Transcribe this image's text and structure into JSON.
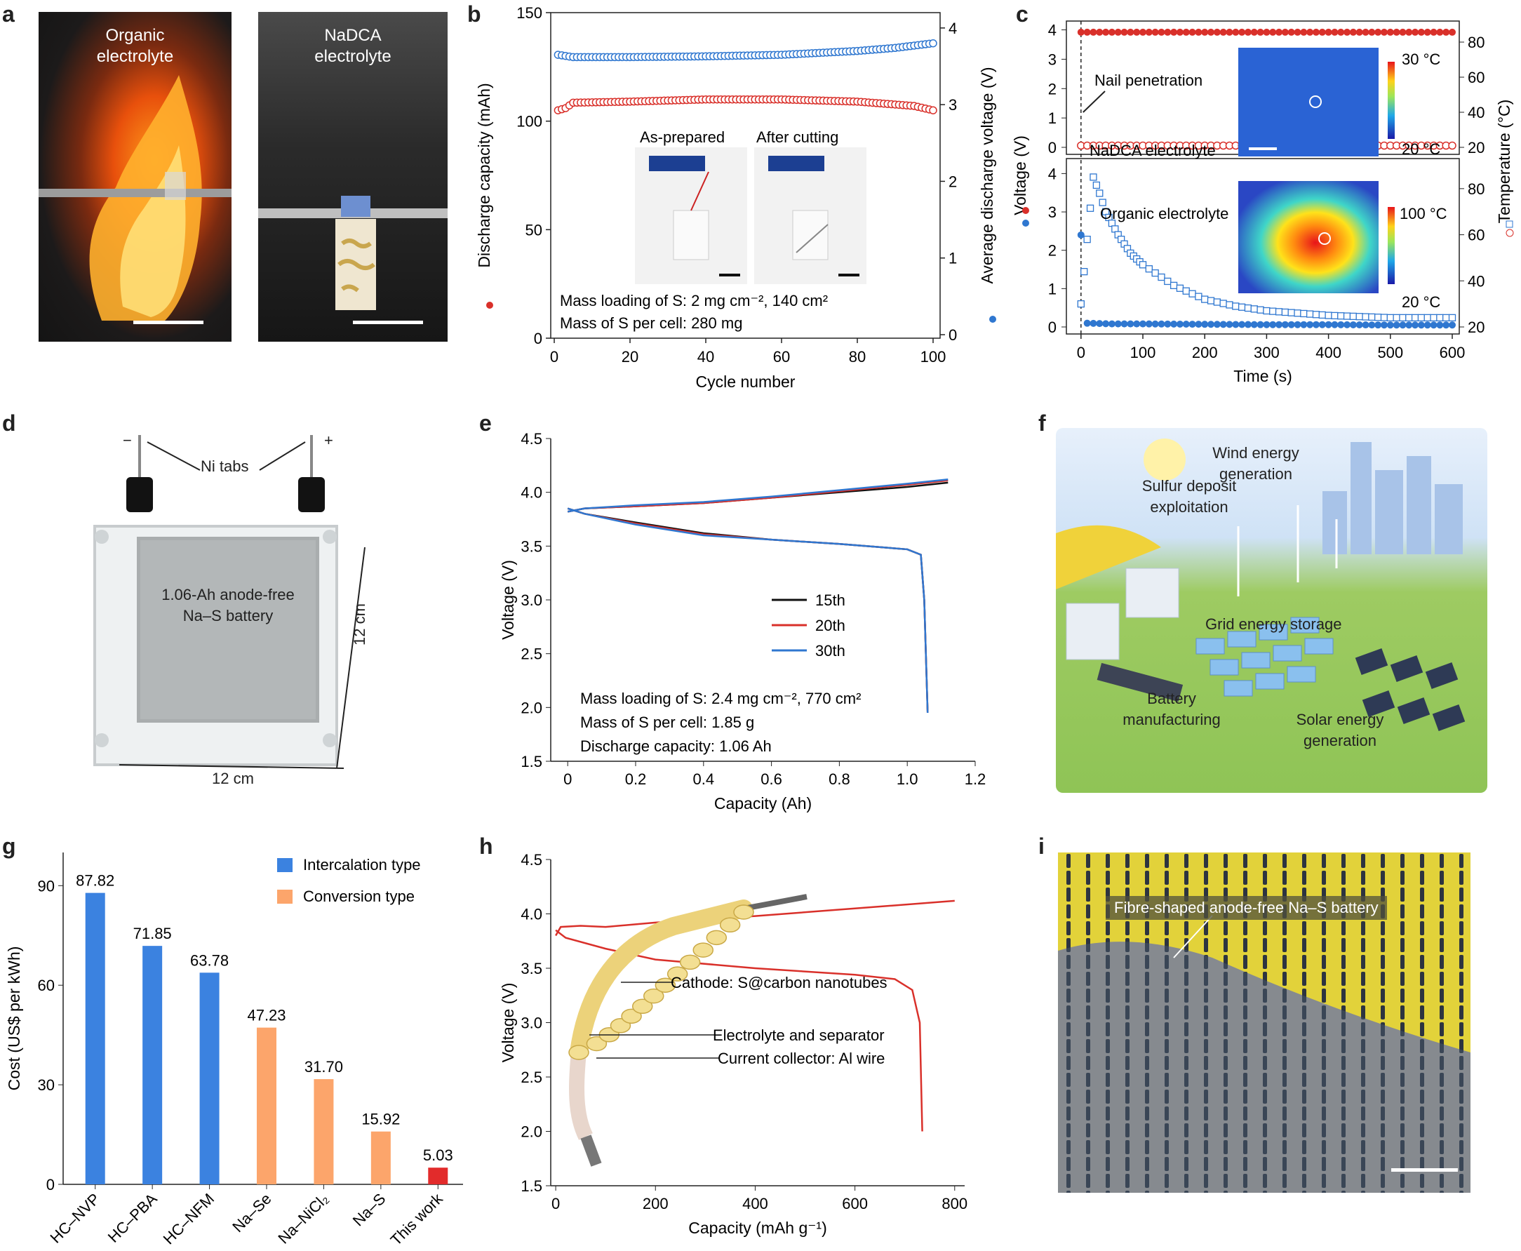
{
  "panel_letters": [
    "a",
    "b",
    "c",
    "d",
    "e",
    "f",
    "g",
    "h",
    "i"
  ],
  "panel_a": {
    "left_label_1": "Organic",
    "left_label_2": "electrolyte",
    "right_label_1": "NaDCA",
    "right_label_2": "electrolyte"
  },
  "panel_b": {
    "xlabel": "Cycle number",
    "ylabel_left": "Discharge capacity (mAh)",
    "ylabel_right": "Average discharge voltage (V)",
    "xticks": [
      "0",
      "20",
      "40",
      "60",
      "80",
      "100"
    ],
    "yticks_left": [
      "0",
      "50",
      "100",
      "150"
    ],
    "yticks_right": [
      "0",
      "1",
      "2",
      "3",
      "4"
    ],
    "inset_left": "As-prepared",
    "inset_right": "After cutting",
    "note_1": "Mass loading of S: 2 mg cm⁻², 140 cm²",
    "note_2": "Mass of S per cell: 280 mg",
    "colors": {
      "capacity": "#d9302a",
      "voltage": "#2f77d0"
    }
  },
  "panel_c": {
    "xlabel": "Time (s)",
    "ylabel_left": "Voltage (V)",
    "ylabel_right": "Temperature (°C)",
    "xticks": [
      "0",
      "100",
      "200",
      "300",
      "400",
      "500",
      "600"
    ],
    "yticks_top": [
      "0",
      "1",
      "2",
      "3",
      "4"
    ],
    "yticks_bottom": [
      "0",
      "1",
      "2",
      "3",
      "4"
    ],
    "yticks_right_top": [
      "20",
      "40",
      "60",
      "80"
    ],
    "yticks_right_bottom": [
      "20",
      "40",
      "60",
      "80"
    ],
    "annotation": "Nail penetration",
    "top_label": "NaDCA electrolyte",
    "bottom_label": "Organic electrolyte",
    "top_scale_max": "30 °C",
    "top_scale_min": "20 °C",
    "bottom_scale_max": "100 °C",
    "bottom_scale_min": "20 °C"
  },
  "panel_d": {
    "tabs_label": "Ni tabs",
    "minus": "−",
    "plus": "+",
    "battery_label_1": "1.06-Ah anode-free",
    "battery_label_2": "Na–S battery",
    "dim_v": "12 cm",
    "dim_h": "12 cm"
  },
  "panel_e": {
    "xlabel": "Capacity (Ah)",
    "ylabel": "Voltage (V)",
    "xticks": [
      "0",
      "0.2",
      "0.4",
      "0.6",
      "0.8",
      "1.0",
      "1.2"
    ],
    "yticks": [
      "1.5",
      "2.0",
      "2.5",
      "3.0",
      "3.5",
      "4.0",
      "4.5"
    ],
    "legend": [
      "15th",
      "20th",
      "30th"
    ],
    "legend_colors": [
      "#111111",
      "#d9302a",
      "#2f77d0"
    ],
    "note_1": "Mass loading of S: 2.4 mg cm⁻², 770 cm²",
    "note_2": "Mass of S per cell: 1.85 g",
    "note_3": "Discharge capacity: 1.06 Ah"
  },
  "panel_f": {
    "label_sulfur_1": "Sulfur deposit",
    "label_sulfur_2": "exploitation",
    "label_wind_1": "Wind energy",
    "label_wind_2": "generation",
    "label_grid": "Grid energy storage",
    "label_battery_1": "Battery",
    "label_battery_2": "manufacturing",
    "label_solar_1": "Solar energy",
    "label_solar_2": "generation"
  },
  "panel_h": {
    "xlabel": "Capacity (mAh g⁻¹)",
    "ylabel": "Voltage (V)",
    "xticks": [
      "0",
      "200",
      "400",
      "600",
      "800"
    ],
    "yticks": [
      "1.5",
      "2.0",
      "2.5",
      "3.0",
      "3.5",
      "4.0",
      "4.5"
    ],
    "callout_cathode": "Cathode: S@carbon nanotubes",
    "callout_electrolyte": "Electrolyte and separator",
    "callout_collector": "Current collector: Al wire"
  },
  "panel_i": {
    "label": "Fibre-shaped anode-free Na–S battery"
  },
  "chart_data": [
    {
      "type": "scatter",
      "panel": "b",
      "xlabel": "Cycle number",
      "ylabel": "Discharge capacity (mAh)",
      "ylabel_right": "Average discharge voltage (V)",
      "xlim": [
        0,
        100
      ],
      "ylim": [
        0,
        150
      ],
      "ylim_right": [
        0,
        4.2
      ],
      "series": [
        {
          "name": "Discharge capacity (mAh)",
          "axis": "left",
          "x": [
            1,
            3,
            5,
            20,
            40,
            60,
            80,
            95,
            100
          ],
          "values": [
            105,
            106,
            108.5,
            109,
            110,
            110,
            109,
            107,
            105
          ]
        },
        {
          "name": "Average discharge voltage (V)",
          "axis": "right",
          "x": [
            1,
            5,
            20,
            40,
            60,
            80,
            90,
            100
          ],
          "values": [
            3.65,
            3.62,
            3.62,
            3.63,
            3.65,
            3.7,
            3.74,
            3.8
          ]
        }
      ]
    },
    {
      "type": "scatter",
      "panel": "c-top",
      "xlabel": "Time (s)",
      "ylabel": "Voltage (V)",
      "ylabel_right": "Temperature (°C)",
      "xlim": [
        -10,
        600
      ],
      "ylim": [
        0,
        4.3
      ],
      "series": [
        {
          "name": "Voltage (V)",
          "axis": "left",
          "x": [
            0,
            100,
            200,
            300,
            400,
            500,
            600
          ],
          "values": [
            3.92,
            3.92,
            3.92,
            3.92,
            3.92,
            3.92,
            3.92
          ]
        },
        {
          "name": "Temperature (°C)",
          "axis": "right",
          "x": [
            0,
            100,
            200,
            300,
            400,
            500,
            600
          ],
          "values": [
            21,
            21,
            21,
            21,
            21,
            21,
            21
          ]
        }
      ]
    },
    {
      "type": "scatter",
      "panel": "c-bottom",
      "xlabel": "Time (s)",
      "ylabel": "Voltage (V)",
      "ylabel_right": "Temperature (°C)",
      "series": [
        {
          "name": "Voltage (V)",
          "axis": "left",
          "x": [
            0,
            5,
            50,
            100,
            200,
            300,
            400,
            500,
            600
          ],
          "values": [
            2.4,
            0.1,
            0.08,
            0.08,
            0.07,
            0.06,
            0.06,
            0.05,
            0.05
          ]
        },
        {
          "name": "Temperature (°C)",
          "axis": "right",
          "x": [
            0,
            10,
            20,
            30,
            40,
            60,
            80,
            100,
            150,
            200,
            250,
            300,
            400,
            500,
            600
          ],
          "values": [
            30,
            58,
            85,
            78,
            70,
            60,
            52,
            47,
            38,
            32,
            29,
            27,
            25,
            24,
            24
          ]
        }
      ]
    },
    {
      "type": "line",
      "panel": "e",
      "xlabel": "Capacity (Ah)",
      "ylabel": "Voltage (V)",
      "xlim": [
        -0.05,
        1.2
      ],
      "ylim": [
        1.5,
        4.5
      ],
      "series": [
        {
          "name": "15th",
          "color": "#111111",
          "charge": {
            "x": [
              0,
              0.05,
              0.2,
              0.4,
              0.6,
              0.8,
              1.0,
              1.12
            ],
            "y": [
              3.82,
              3.85,
              3.87,
              3.9,
              3.95,
              4.0,
              4.05,
              4.09
            ]
          },
          "discharge": {
            "x": [
              0,
              0.05,
              0.2,
              0.4,
              0.6,
              0.8,
              1.0,
              1.04,
              1.05,
              1.06
            ],
            "y": [
              3.85,
              3.8,
              3.72,
              3.62,
              3.56,
              3.52,
              3.47,
              3.42,
              3.0,
              1.95
            ]
          }
        },
        {
          "name": "20th",
          "color": "#d9302a",
          "charge": {
            "x": [
              0,
              0.05,
              0.2,
              0.4,
              0.6,
              0.8,
              1.0,
              1.12
            ],
            "y": [
              3.82,
              3.85,
              3.87,
              3.9,
              3.95,
              4.01,
              4.07,
              4.11
            ]
          },
          "discharge": {
            "x": [
              0,
              0.05,
              0.2,
              0.4,
              0.6,
              0.8,
              1.0,
              1.04,
              1.05,
              1.06
            ],
            "y": [
              3.85,
              3.8,
              3.71,
              3.61,
              3.56,
              3.52,
              3.47,
              3.42,
              3.0,
              1.95
            ]
          }
        },
        {
          "name": "30th",
          "color": "#2f77d0",
          "charge": {
            "x": [
              0,
              0.05,
              0.2,
              0.4,
              0.6,
              0.8,
              1.0,
              1.12
            ],
            "y": [
              3.82,
              3.85,
              3.88,
              3.91,
              3.96,
              4.02,
              4.08,
              4.12
            ]
          },
          "discharge": {
            "x": [
              0,
              0.05,
              0.2,
              0.4,
              0.6,
              0.8,
              1.0,
              1.04,
              1.05,
              1.06
            ],
            "y": [
              3.85,
              3.8,
              3.7,
              3.6,
              3.56,
              3.52,
              3.47,
              3.42,
              3.0,
              1.95
            ]
          }
        }
      ]
    },
    {
      "type": "bar",
      "panel": "g",
      "ylabel": "Cost (US$ per kWh)",
      "ylim": [
        0,
        100
      ],
      "categories": [
        "HC–NVP",
        "HC–PBA",
        "HC–NFM",
        "Na–Se",
        "Na–NiCl₂",
        "Na–S",
        "This work"
      ],
      "values": [
        87.82,
        71.85,
        63.78,
        47.23,
        31.7,
        15.92,
        5.03
      ],
      "value_labels": [
        "87.82",
        "71.85",
        "63.78",
        "47.23",
        "31.70",
        "15.92",
        "5.03"
      ],
      "colors": [
        "#3b82e0",
        "#3b82e0",
        "#3b82e0",
        "#fca56b",
        "#fca56b",
        "#fca56b",
        "#e22b2b"
      ],
      "yticks": [
        "0",
        "30",
        "60",
        "90"
      ],
      "legend": [
        {
          "name": "Intercalation type",
          "color": "#3b82e0"
        },
        {
          "name": "Conversion type",
          "color": "#fca56b"
        }
      ]
    },
    {
      "type": "line",
      "panel": "h",
      "xlabel": "Capacity (mAh g⁻¹)",
      "ylabel": "Voltage (V)",
      "xlim": [
        -10,
        820
      ],
      "ylim": [
        1.5,
        4.5
      ],
      "series": [
        {
          "name": "charge",
          "x": [
            0,
            10,
            50,
            100,
            200,
            400,
            600,
            800
          ],
          "y": [
            3.8,
            3.88,
            3.89,
            3.88,
            3.92,
            3.98,
            4.05,
            4.12
          ]
        },
        {
          "name": "discharge",
          "x": [
            0,
            20,
            100,
            200,
            400,
            600,
            680,
            715,
            730,
            735
          ],
          "y": [
            3.85,
            3.78,
            3.68,
            3.58,
            3.5,
            3.44,
            3.4,
            3.3,
            3.0,
            2.0
          ]
        }
      ]
    }
  ]
}
